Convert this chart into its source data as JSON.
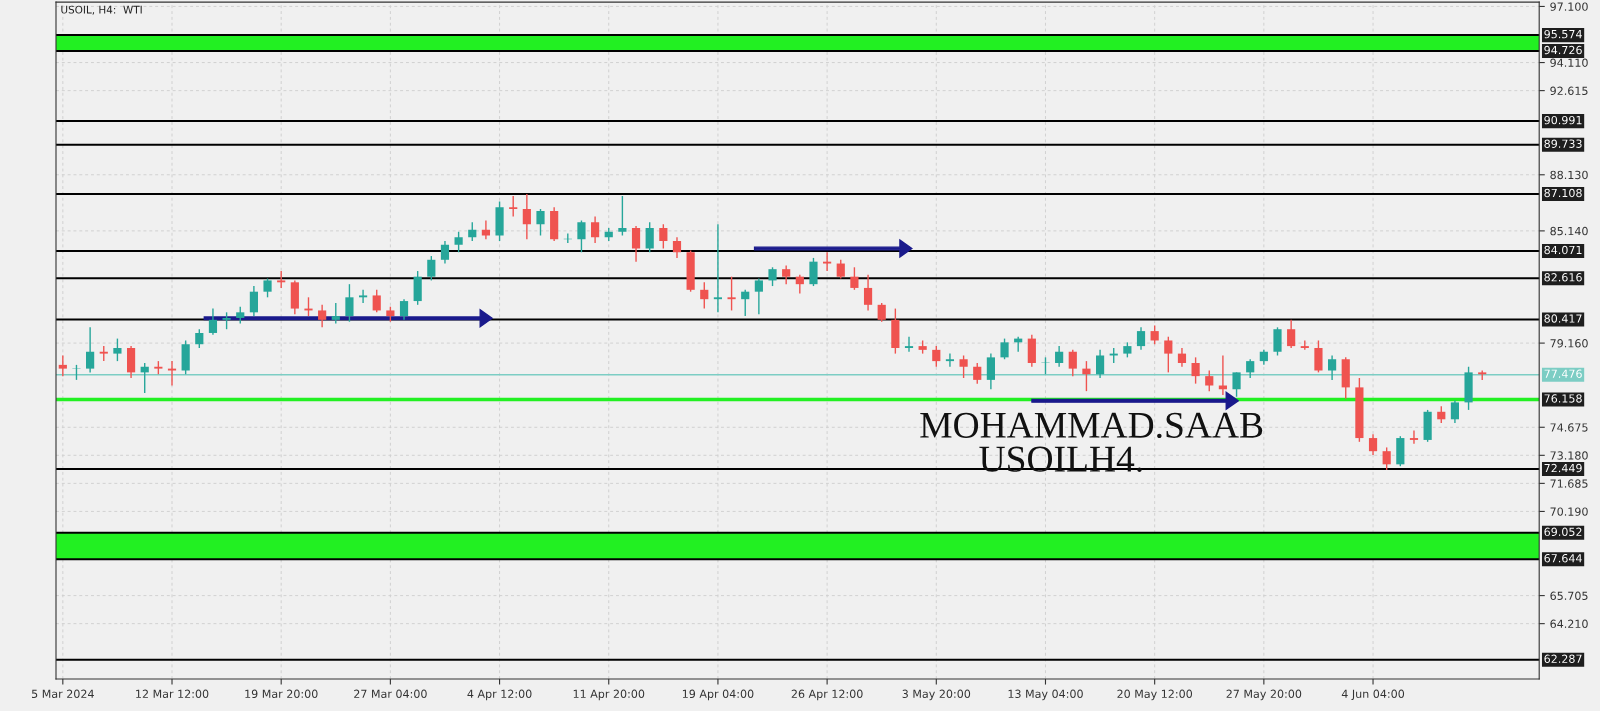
{
  "chart_data": {
    "type": "candlestick",
    "title": "USOIL, H4:  WTI",
    "categories": [
      "5 Mar 2024",
      null,
      null,
      null,
      null,
      null,
      null,
      null,
      "12 Mar 12:00",
      null,
      null,
      null,
      null,
      null,
      null,
      null,
      "19 Mar 20:00",
      null,
      null,
      null,
      null,
      null,
      null,
      null,
      "27 Mar 04:00",
      null,
      null,
      null,
      null,
      null,
      null,
      null,
      "4 Apr 12:00",
      null,
      null,
      null,
      null,
      null,
      null,
      null,
      "11 Apr 20:00",
      null,
      null,
      null,
      null,
      null,
      null,
      null,
      "19 Apr 04:00",
      null,
      null,
      null,
      null,
      null,
      null,
      null,
      "26 Apr 12:00",
      null,
      null,
      null,
      null,
      null,
      null,
      null,
      "3 May 20:00",
      null,
      null,
      null,
      null,
      null,
      null,
      null,
      "13 May 04:00",
      null,
      null,
      null,
      null,
      null,
      null,
      null,
      "20 May 12:00",
      null,
      null,
      null,
      null,
      null,
      null,
      null,
      "27 May 20:00",
      null,
      null,
      null,
      null,
      null,
      null,
      null,
      "4 Jun 04:00",
      null,
      null,
      null,
      null,
      null,
      null,
      null,
      null
    ],
    "ohlc": [
      [
        78.0,
        78.5,
        77.4,
        77.8
      ],
      [
        77.8,
        78.0,
        77.2,
        77.8
      ],
      [
        77.8,
        80.0,
        77.6,
        78.7
      ],
      [
        78.7,
        79.0,
        78.2,
        78.6
      ],
      [
        78.6,
        79.4,
        78.2,
        78.9
      ],
      [
        78.9,
        79.0,
        77.3,
        77.6
      ],
      [
        77.6,
        78.1,
        76.5,
        77.9
      ],
      [
        77.9,
        78.2,
        77.5,
        77.8
      ],
      [
        77.8,
        78.2,
        76.9,
        77.7
      ],
      [
        77.7,
        79.3,
        77.5,
        79.1
      ],
      [
        79.1,
        79.9,
        78.9,
        79.7
      ],
      [
        79.7,
        81.0,
        79.6,
        80.4
      ],
      [
        80.4,
        80.8,
        79.9,
        80.5
      ],
      [
        80.5,
        81.1,
        80.2,
        80.8
      ],
      [
        80.8,
        82.2,
        80.6,
        81.9
      ],
      [
        81.9,
        82.6,
        81.6,
        82.5
      ],
      [
        82.5,
        83.0,
        82.1,
        82.4
      ],
      [
        82.4,
        82.5,
        80.7,
        81.0
      ],
      [
        81.0,
        81.6,
        80.6,
        80.9
      ],
      [
        80.9,
        81.2,
        80.0,
        80.4
      ],
      [
        80.4,
        81.3,
        80.2,
        80.6
      ],
      [
        80.6,
        82.3,
        80.3,
        81.6
      ],
      [
        81.6,
        82.0,
        81.3,
        81.7
      ],
      [
        81.7,
        82.0,
        80.8,
        80.9
      ],
      [
        80.9,
        81.1,
        80.3,
        80.6
      ],
      [
        80.6,
        81.5,
        80.4,
        81.4
      ],
      [
        81.4,
        83.0,
        81.2,
        82.7
      ],
      [
        82.7,
        83.8,
        82.5,
        83.6
      ],
      [
        83.6,
        84.6,
        83.4,
        84.4
      ],
      [
        84.4,
        85.1,
        84.0,
        84.8
      ],
      [
        84.8,
        85.6,
        84.6,
        85.2
      ],
      [
        85.2,
        85.7,
        84.7,
        84.9
      ],
      [
        84.9,
        86.7,
        84.6,
        86.4
      ],
      [
        86.4,
        87.0,
        85.9,
        86.3
      ],
      [
        86.3,
        87.1,
        84.7,
        85.5
      ],
      [
        85.5,
        86.3,
        84.9,
        86.2
      ],
      [
        86.2,
        86.4,
        84.6,
        84.7
      ],
      [
        84.7,
        85.0,
        84.5,
        84.7
      ],
      [
        84.7,
        85.7,
        84.0,
        85.6
      ],
      [
        85.6,
        85.9,
        84.5,
        84.8
      ],
      [
        84.8,
        85.3,
        84.6,
        85.1
      ],
      [
        85.1,
        87.0,
        84.9,
        85.3
      ],
      [
        85.3,
        85.4,
        83.5,
        84.2
      ],
      [
        84.2,
        85.6,
        84.0,
        85.3
      ],
      [
        85.3,
        85.5,
        84.2,
        84.6
      ],
      [
        84.6,
        84.8,
        83.7,
        84.0
      ],
      [
        84.0,
        84.1,
        81.9,
        82.0
      ],
      [
        82.0,
        82.4,
        81.0,
        81.5
      ],
      [
        81.5,
        85.5,
        80.8,
        81.6
      ],
      [
        81.6,
        82.7,
        80.9,
        81.5
      ],
      [
        81.5,
        82.0,
        80.6,
        81.9
      ],
      [
        81.9,
        82.6,
        80.7,
        82.5
      ],
      [
        82.5,
        83.2,
        82.2,
        83.1
      ],
      [
        83.1,
        83.3,
        82.3,
        82.7
      ],
      [
        82.7,
        82.8,
        81.8,
        82.3
      ],
      [
        82.3,
        83.7,
        82.2,
        83.5
      ],
      [
        83.5,
        84.0,
        83.0,
        83.4
      ],
      [
        83.4,
        83.6,
        82.6,
        82.7
      ],
      [
        82.7,
        83.2,
        82.0,
        82.1
      ],
      [
        82.1,
        82.8,
        80.9,
        81.2
      ],
      [
        81.2,
        81.3,
        80.3,
        80.4
      ],
      [
        80.4,
        81.0,
        78.6,
        78.9
      ],
      [
        78.9,
        79.5,
        78.7,
        79.0
      ],
      [
        79.0,
        79.3,
        78.6,
        78.8
      ],
      [
        78.8,
        79.0,
        77.9,
        78.2
      ],
      [
        78.2,
        78.6,
        77.9,
        78.3
      ],
      [
        78.3,
        78.5,
        77.3,
        77.9
      ],
      [
        77.9,
        78.1,
        77.0,
        77.2
      ],
      [
        77.2,
        78.6,
        76.7,
        78.4
      ],
      [
        78.4,
        79.4,
        78.3,
        79.2
      ],
      [
        79.2,
        79.5,
        78.7,
        79.4
      ],
      [
        79.4,
        79.6,
        77.9,
        78.1
      ],
      [
        78.1,
        78.4,
        77.5,
        78.1
      ],
      [
        78.1,
        79.0,
        77.9,
        78.7
      ],
      [
        78.7,
        78.8,
        77.4,
        77.8
      ],
      [
        77.8,
        78.2,
        76.6,
        77.5
      ],
      [
        77.5,
        78.8,
        77.3,
        78.5
      ],
      [
        78.5,
        78.9,
        78.1,
        78.6
      ],
      [
        78.6,
        79.2,
        78.4,
        79.0
      ],
      [
        79.0,
        80.0,
        78.8,
        79.8
      ],
      [
        79.8,
        80.1,
        79.1,
        79.3
      ],
      [
        79.3,
        79.5,
        77.6,
        78.6
      ],
      [
        78.6,
        78.9,
        77.9,
        78.1
      ],
      [
        78.1,
        78.4,
        77.0,
        77.4
      ],
      [
        77.4,
        77.7,
        76.6,
        76.9
      ],
      [
        76.9,
        78.5,
        76.4,
        76.7
      ],
      [
        76.7,
        77.6,
        76.3,
        77.6
      ],
      [
        77.6,
        78.3,
        77.3,
        78.2
      ],
      [
        78.2,
        78.8,
        78.0,
        78.7
      ],
      [
        78.7,
        80.0,
        78.5,
        79.9
      ],
      [
        79.9,
        80.4,
        78.9,
        79.0
      ],
      [
        79.0,
        79.3,
        78.8,
        78.9
      ],
      [
        78.9,
        79.3,
        77.6,
        77.7
      ],
      [
        77.7,
        78.5,
        77.2,
        78.3
      ],
      [
        78.3,
        78.4,
        76.2,
        76.8
      ],
      [
        76.8,
        77.3,
        73.9,
        74.1
      ],
      [
        74.1,
        74.3,
        73.2,
        73.4
      ],
      [
        73.4,
        73.6,
        72.4,
        72.7
      ],
      [
        72.7,
        74.2,
        72.6,
        74.1
      ],
      [
        74.1,
        74.5,
        73.8,
        74.0
      ],
      [
        74.0,
        75.6,
        73.9,
        75.5
      ],
      [
        75.5,
        75.8,
        74.9,
        75.1
      ],
      [
        75.1,
        76.1,
        74.9,
        76.0
      ],
      [
        76.0,
        77.9,
        75.6,
        77.6
      ],
      [
        77.6,
        77.7,
        77.2,
        77.5
      ]
    ],
    "ylim": [
      61.26,
      97.33
    ],
    "yticks": [
      {
        "value": 97.1,
        "label": "97.100"
      },
      {
        "value": 94.11,
        "label": "94.110"
      },
      92.615,
      {
        "value": 88.13,
        "label": "88.130"
      },
      {
        "value": 85.14,
        "label": "85.140"
      },
      {
        "value": 79.16,
        "label": "79.160"
      },
      74.675,
      {
        "value": 73.18,
        "label": "73.180"
      },
      71.685,
      {
        "value": 70.19,
        "label": "70.190"
      },
      65.705,
      {
        "value": 64.21,
        "label": "64.210"
      }
    ],
    "grid": true,
    "bands": [
      {
        "axis": "y",
        "from": 94.726,
        "to": 95.574,
        "color": "#22f022"
      },
      {
        "axis": "y",
        "from": 67.644,
        "to": 69.052,
        "color": "#22f022"
      }
    ],
    "ref_lines": [
      {
        "axis": "y",
        "value": 95.574,
        "label": "95.574",
        "color": "#000000"
      },
      {
        "axis": "y",
        "value": 94.726,
        "label": "94.726",
        "color": "#000000"
      },
      {
        "axis": "y",
        "value": 90.991,
        "label": "90.991",
        "color": "#000000"
      },
      {
        "axis": "y",
        "value": 89.733,
        "label": "89.733",
        "color": "#000000"
      },
      {
        "axis": "y",
        "value": 87.108,
        "label": "87.108",
        "color": "#000000"
      },
      {
        "axis": "y",
        "value": 84.071,
        "label": "84.071",
        "color": "#000000"
      },
      {
        "axis": "y",
        "value": 82.616,
        "label": "82.616",
        "color": "#000000"
      },
      {
        "axis": "y",
        "value": 80.417,
        "label": "80.417",
        "color": "#000000"
      },
      {
        "axis": "y",
        "value": 77.476,
        "label": "77.476",
        "color": "#7ccdc4"
      },
      {
        "axis": "y",
        "value": 76.158,
        "label": "76.158",
        "color": "#22f022"
      },
      {
        "axis": "y",
        "value": 72.449,
        "label": "72.449",
        "color": "#000000"
      },
      {
        "axis": "y",
        "value": 69.052,
        "label": "69.052",
        "color": "#000000"
      },
      {
        "axis": "y",
        "value": 67.644,
        "label": "67.644",
        "color": "#000000"
      },
      {
        "axis": "y",
        "value": 62.287,
        "label": "62.287",
        "color": "#000000"
      }
    ],
    "annotations": [
      "MOHAMMAD.SAAB",
      "USOILH4."
    ]
  }
}
